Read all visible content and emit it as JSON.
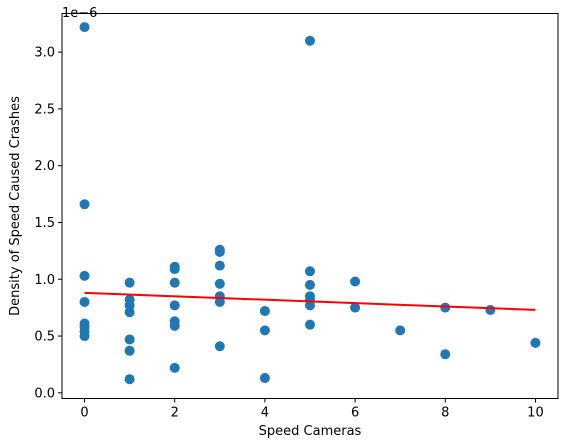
{
  "chart_data": {
    "type": "scatter",
    "xlabel": "Speed Cameras",
    "ylabel": "Density of Speed Caused Crashes",
    "y_offset_label": "1e−6",
    "xlim": [
      -0.5,
      10.5
    ],
    "ylim": [
      -0.05,
      3.34
    ],
    "x_ticks": [
      0,
      2,
      4,
      6,
      8,
      10
    ],
    "x_tick_labels": [
      "0",
      "2",
      "4",
      "6",
      "8",
      "10"
    ],
    "y_ticks": [
      0.0,
      0.5,
      1.0,
      1.5,
      2.0,
      2.5,
      3.0
    ],
    "y_tick_labels": [
      "0.0",
      "0.5",
      "1.0",
      "1.5",
      "2.0",
      "2.5",
      "3.0"
    ],
    "y_scale_note": "values in units of 1e-6",
    "grid": false,
    "colors": {
      "points": "#1f77b4",
      "fit_line": "#ff0000",
      "axes": "#000000"
    },
    "points": [
      {
        "x": 0,
        "y": 3.22
      },
      {
        "x": 0,
        "y": 1.66
      },
      {
        "x": 0,
        "y": 1.03
      },
      {
        "x": 0,
        "y": 0.8
      },
      {
        "x": 0,
        "y": 0.61
      },
      {
        "x": 0,
        "y": 0.58
      },
      {
        "x": 0,
        "y": 0.54
      },
      {
        "x": 0,
        "y": 0.5
      },
      {
        "x": 1,
        "y": 0.97
      },
      {
        "x": 1,
        "y": 0.82
      },
      {
        "x": 1,
        "y": 0.77
      },
      {
        "x": 1,
        "y": 0.71
      },
      {
        "x": 1,
        "y": 0.47
      },
      {
        "x": 1,
        "y": 0.37
      },
      {
        "x": 1,
        "y": 0.12
      },
      {
        "x": 2,
        "y": 1.11
      },
      {
        "x": 2,
        "y": 1.09
      },
      {
        "x": 2,
        "y": 0.97
      },
      {
        "x": 2,
        "y": 0.77
      },
      {
        "x": 2,
        "y": 0.63
      },
      {
        "x": 2,
        "y": 0.59
      },
      {
        "x": 2,
        "y": 0.22
      },
      {
        "x": 3,
        "y": 1.26
      },
      {
        "x": 3,
        "y": 1.24
      },
      {
        "x": 3,
        "y": 1.12
      },
      {
        "x": 3,
        "y": 0.96
      },
      {
        "x": 3,
        "y": 0.85
      },
      {
        "x": 3,
        "y": 0.8
      },
      {
        "x": 3,
        "y": 0.41
      },
      {
        "x": 4,
        "y": 0.72
      },
      {
        "x": 4,
        "y": 0.55
      },
      {
        "x": 4,
        "y": 0.13
      },
      {
        "x": 5,
        "y": 3.1
      },
      {
        "x": 5,
        "y": 1.07
      },
      {
        "x": 5,
        "y": 0.95
      },
      {
        "x": 5,
        "y": 0.85
      },
      {
        "x": 5,
        "y": 0.82
      },
      {
        "x": 5,
        "y": 0.77
      },
      {
        "x": 5,
        "y": 0.6
      },
      {
        "x": 6,
        "y": 0.98
      },
      {
        "x": 6,
        "y": 0.75
      },
      {
        "x": 7,
        "y": 0.55
      },
      {
        "x": 8,
        "y": 0.75
      },
      {
        "x": 8,
        "y": 0.34
      },
      {
        "x": 9,
        "y": 0.73
      },
      {
        "x": 10,
        "y": 0.44
      }
    ],
    "fit_line": {
      "x": [
        0,
        10
      ],
      "y": [
        0.88,
        0.73
      ]
    }
  }
}
